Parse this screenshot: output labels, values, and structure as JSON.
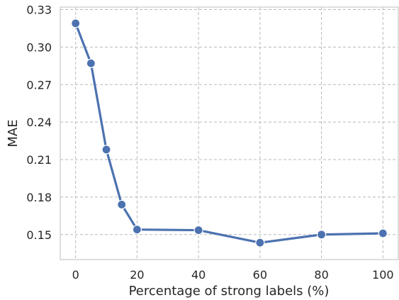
{
  "chart_data": {
    "type": "line",
    "xlabel": "Percentage of strong labels (%)",
    "ylabel": "MAE",
    "xlim": [
      -5,
      105
    ],
    "ylim": [
      0.13,
      0.332
    ],
    "xticks": [
      0,
      20,
      40,
      60,
      80,
      100
    ],
    "yticks": [
      0.15,
      0.18,
      0.21,
      0.24,
      0.27,
      0.3,
      0.33
    ],
    "ytick_labels": [
      "0.15",
      "0.18",
      "0.21",
      "0.24",
      "0.27",
      "0.30",
      "0.33"
    ],
    "grid": true,
    "series": [
      {
        "color": "#4c72b0",
        "x": [
          0,
          5,
          10,
          15,
          20,
          40,
          60,
          80,
          100
        ],
        "y": [
          0.319,
          0.287,
          0.218,
          0.174,
          0.154,
          0.1535,
          0.1435,
          0.15,
          0.151
        ]
      }
    ]
  }
}
